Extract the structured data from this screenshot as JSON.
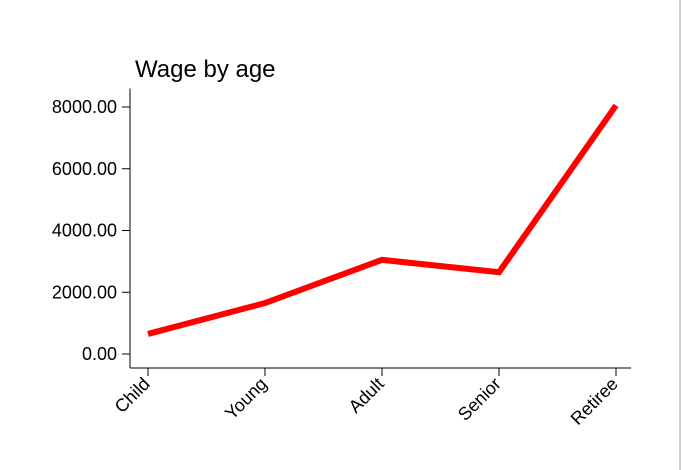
{
  "chart_data": {
    "type": "line",
    "title": "Wage by age",
    "xlabel": "",
    "ylabel": "",
    "categories": [
      "Child",
      "Young",
      "Adult",
      "Senior",
      "Retiree"
    ],
    "series": [
      {
        "values": [
          650,
          1650,
          3050,
          2650,
          8050
        ],
        "color": "#ff0000"
      }
    ],
    "yticks": [
      0,
      2000,
      4000,
      6000,
      8000
    ],
    "ytick_labels": [
      "0.00",
      "2000.00",
      "4000.00",
      "6000.00",
      "8000.00"
    ],
    "ylim": [
      -500,
      8600
    ],
    "grid": false,
    "legend": "none"
  }
}
